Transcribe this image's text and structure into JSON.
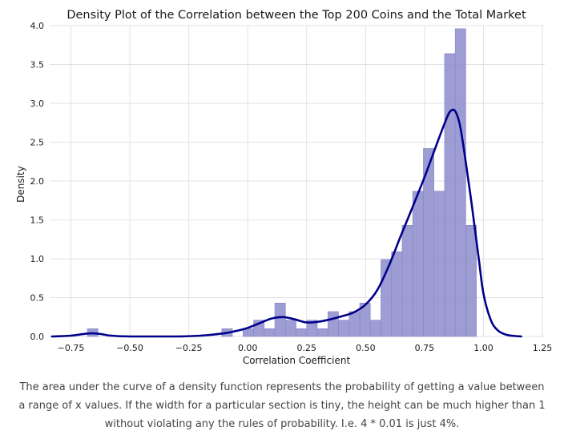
{
  "chart_data": {
    "type": "histogram",
    "title": "Density Plot of the Correlation between the Top 200 Coins and the Total Market",
    "xlabel": "Correlation Coefficient",
    "ylabel": "Density",
    "xlim": [
      -0.84,
      1.26
    ],
    "ylim": [
      0,
      4.0
    ],
    "x_ticks": [
      "−0.75",
      "−0.50",
      "−0.25",
      "0.00",
      "0.25",
      "0.50",
      "0.75",
      "1.00",
      "1.25"
    ],
    "x_tick_values": [
      -0.75,
      -0.5,
      -0.25,
      0.0,
      0.25,
      0.5,
      0.75,
      1.0,
      1.25
    ],
    "y_ticks": [
      "0.0",
      "0.5",
      "1.0",
      "1.5",
      "2.0",
      "2.5",
      "3.0",
      "3.5",
      "4.0"
    ],
    "y_tick_values": [
      0,
      0.5,
      1.0,
      1.5,
      2.0,
      2.5,
      3.0,
      3.5,
      4.0
    ],
    "grid": true,
    "bar_color": "#8c8ccc",
    "line_color": "#00008b",
    "bins": [
      {
        "x0": -0.68,
        "x1": -0.635,
        "density": 0.1
      },
      {
        "x0": -0.11,
        "x1": -0.065,
        "density": 0.1
      },
      {
        "x0": -0.02,
        "x1": 0.025,
        "density": 0.1
      },
      {
        "x0": 0.025,
        "x1": 0.07,
        "density": 0.21
      },
      {
        "x0": 0.07,
        "x1": 0.115,
        "density": 0.1
      },
      {
        "x0": 0.115,
        "x1": 0.16,
        "density": 0.43
      },
      {
        "x0": 0.16,
        "x1": 0.205,
        "density": 0.21
      },
      {
        "x0": 0.205,
        "x1": 0.25,
        "density": 0.1
      },
      {
        "x0": 0.25,
        "x1": 0.295,
        "density": 0.21
      },
      {
        "x0": 0.295,
        "x1": 0.34,
        "density": 0.1
      },
      {
        "x0": 0.34,
        "x1": 0.385,
        "density": 0.32
      },
      {
        "x0": 0.385,
        "x1": 0.43,
        "density": 0.21
      },
      {
        "x0": 0.43,
        "x1": 0.475,
        "density": 0.32
      },
      {
        "x0": 0.475,
        "x1": 0.52,
        "density": 0.43
      },
      {
        "x0": 0.52,
        "x1": 0.565,
        "density": 0.21
      },
      {
        "x0": 0.565,
        "x1": 0.61,
        "density": 0.99
      },
      {
        "x0": 0.61,
        "x1": 0.655,
        "density": 1.09
      },
      {
        "x0": 0.655,
        "x1": 0.7,
        "density": 1.43
      },
      {
        "x0": 0.7,
        "x1": 0.745,
        "density": 1.87
      },
      {
        "x0": 0.745,
        "x1": 0.79,
        "density": 2.42
      },
      {
        "x0": 0.79,
        "x1": 0.835,
        "density": 1.87
      },
      {
        "x0": 0.835,
        "x1": 0.88,
        "density": 3.64
      },
      {
        "x0": 0.88,
        "x1": 0.925,
        "density": 3.96
      },
      {
        "x0": 0.925,
        "x1": 0.97,
        "density": 1.43
      }
    ],
    "kde": {
      "x": [
        -0.83,
        -0.75,
        -0.7,
        -0.66,
        -0.62,
        -0.58,
        -0.5,
        -0.4,
        -0.3,
        -0.2,
        -0.1,
        -0.05,
        0.0,
        0.05,
        0.1,
        0.15,
        0.2,
        0.25,
        0.3,
        0.35,
        0.4,
        0.45,
        0.5,
        0.55,
        0.6,
        0.65,
        0.7,
        0.75,
        0.8,
        0.84,
        0.86,
        0.88,
        0.9,
        0.92,
        0.95,
        0.98,
        1.0,
        1.03,
        1.06,
        1.1,
        1.16
      ],
      "y": [
        0.0,
        0.01,
        0.03,
        0.04,
        0.03,
        0.01,
        0.0,
        0.0,
        0.0,
        0.01,
        0.04,
        0.07,
        0.11,
        0.17,
        0.23,
        0.25,
        0.22,
        0.18,
        0.19,
        0.22,
        0.26,
        0.31,
        0.41,
        0.6,
        0.92,
        1.3,
        1.67,
        2.05,
        2.46,
        2.78,
        2.9,
        2.9,
        2.72,
        2.35,
        1.7,
        1.0,
        0.55,
        0.22,
        0.08,
        0.02,
        0.0
      ]
    }
  },
  "caption": "The area under the curve of a density function represents the probability of getting a value between a range of x values. If the width for a particular section is tiny, the height can be much higher than 1 without violating any the rules of probability. I.e. 4 * 0.01 is just 4%."
}
